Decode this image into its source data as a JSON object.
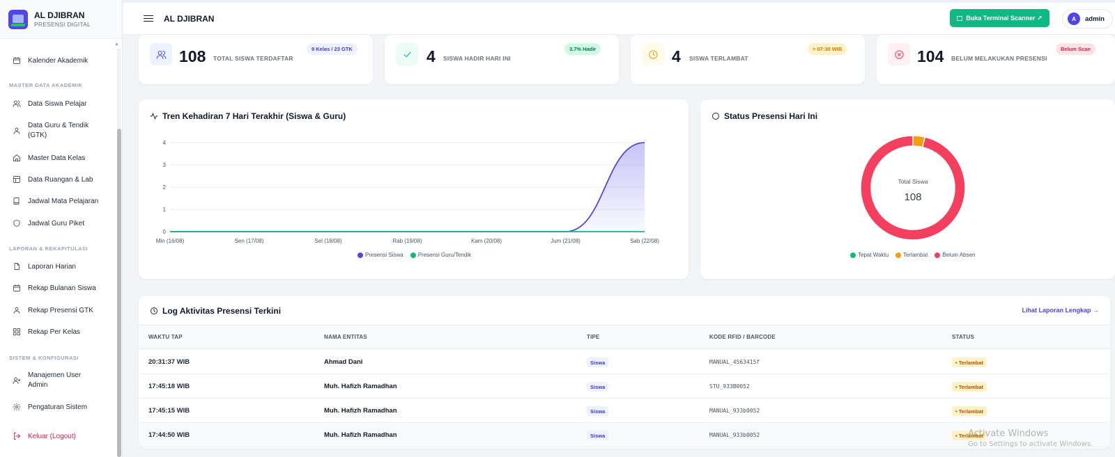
{
  "brand": {
    "title": "AL DJIBRAN",
    "subtitle": "PRESENSI DIGITAL"
  },
  "sidebar": {
    "kalender": "Kalender Akademik",
    "section_master": "MASTER DATA AKADEMIK",
    "data_siswa": "Data Siswa Pelajar",
    "data_guru_1": "Data Guru & Tendik",
    "data_guru_2": "(GTK)",
    "master_kelas": "Master Data Kelas",
    "data_ruangan": "Data Ruangan & Lab",
    "jadwal_mapel": "Jadwal Mata Pelajaran",
    "jadwal_piket": "Jadwal Guru Piket",
    "section_laporan": "LAPORAN & REKAPITULASI",
    "laporan_harian": "Laporan Harian",
    "rekap_bulanan": "Rekap Bulanan Siswa",
    "rekap_gtk": "Rekap Presensi GTK",
    "rekap_kelas": "Rekap Per Kelas",
    "section_sistem": "SISTEM & KONFIGURASI",
    "manajemen_1": "Manajemen User",
    "manajemen_2": "Admin",
    "pengaturan": "Pengaturan Sistem",
    "logout": "Keluar (Logout)"
  },
  "topbar": {
    "title": "AL DJIBRAN",
    "scan_button": "Buka Terminal Scanner ↗",
    "user_initial": "A",
    "user_name": "admin"
  },
  "stats": {
    "total": {
      "value": "108",
      "label": "TOTAL SISWA TERDAFTAR",
      "badge": "9 Kelas / 23 GTK"
    },
    "hadir": {
      "value": "4",
      "label": "SISWA HADIR HARI INI",
      "badge": "3.7% Hadir"
    },
    "terlambat": {
      "value": "4",
      "label": "SISWA TERLAMBAT",
      "badge": "> 07:30 WIB"
    },
    "belum": {
      "value": "104",
      "label": "BELUM MELAKUKAN PRESENSI",
      "badge": "Belum Scan"
    }
  },
  "colors": {
    "siswa_line": "#4f46e5",
    "guru_line": "#10b981",
    "tepat": "#10b981",
    "terlambat": "#f59e0b",
    "belum": "#f43f5e"
  },
  "chart_data": [
    {
      "type": "area",
      "title": "Tren Kehadiran 7 Hari Terakhir (Siswa & Guru)",
      "categories": [
        "Min (16/08)",
        "Sen (17/08)",
        "Sel (18/08)",
        "Rab (19/08)",
        "Kam (20/08)",
        "Jum (21/08)",
        "Sab (22/08)"
      ],
      "ylim": [
        0,
        4
      ],
      "yticks": [
        0,
        1,
        2,
        3,
        4
      ],
      "grid": true,
      "legend": "bottom",
      "series": [
        {
          "name": "Presensi Siswa",
          "values": [
            0,
            0,
            0,
            0,
            0,
            0,
            4
          ]
        },
        {
          "name": "Presensi Guru/Tendik",
          "values": [
            0,
            0,
            0,
            0,
            0,
            0,
            0
          ]
        }
      ]
    },
    {
      "type": "pie",
      "title": "Status Presensi Hari Ini",
      "center_label": "Total Siswa",
      "center_value": "108",
      "legend": "bottom",
      "categories": [
        "Tepat Waktu",
        "Terlambat",
        "Belum Absen"
      ],
      "values": [
        0,
        4,
        104
      ]
    }
  ],
  "log": {
    "title": "Log Aktivitas Presensi Terkini",
    "link": "Lihat Laporan Lengkap →",
    "headers": [
      "WAKTU TAP",
      "NAMA ENTITAS",
      "TIPE",
      "KODE RFID / BARCODE",
      "STATUS"
    ],
    "rows": [
      {
        "time": "20:31:37 WIB",
        "name": "Ahmad Dani",
        "type": "Siswa",
        "code": "MANUAL_4563415f",
        "status": "• Terlambat"
      },
      {
        "time": "17:45:18 WIB",
        "name": "Muh. Hafizh Ramadhan",
        "type": "Siswa",
        "code": "STU_933B0052",
        "status": "• Terlambat"
      },
      {
        "time": "17:45:15 WIB",
        "name": "Muh. Hafizh Ramadhan",
        "type": "Siswa",
        "code": "MANUAL_933b0052",
        "status": "• Terlambat"
      },
      {
        "time": "17:44:50 WIB",
        "name": "Muh. Hafizh Ramadhan",
        "type": "Siswa",
        "code": "MANUAL_933b0052",
        "status": "• Terlambat"
      }
    ]
  },
  "watermark": {
    "line1": "Activate Windows",
    "line2": "Go to Settings to activate Windows."
  }
}
